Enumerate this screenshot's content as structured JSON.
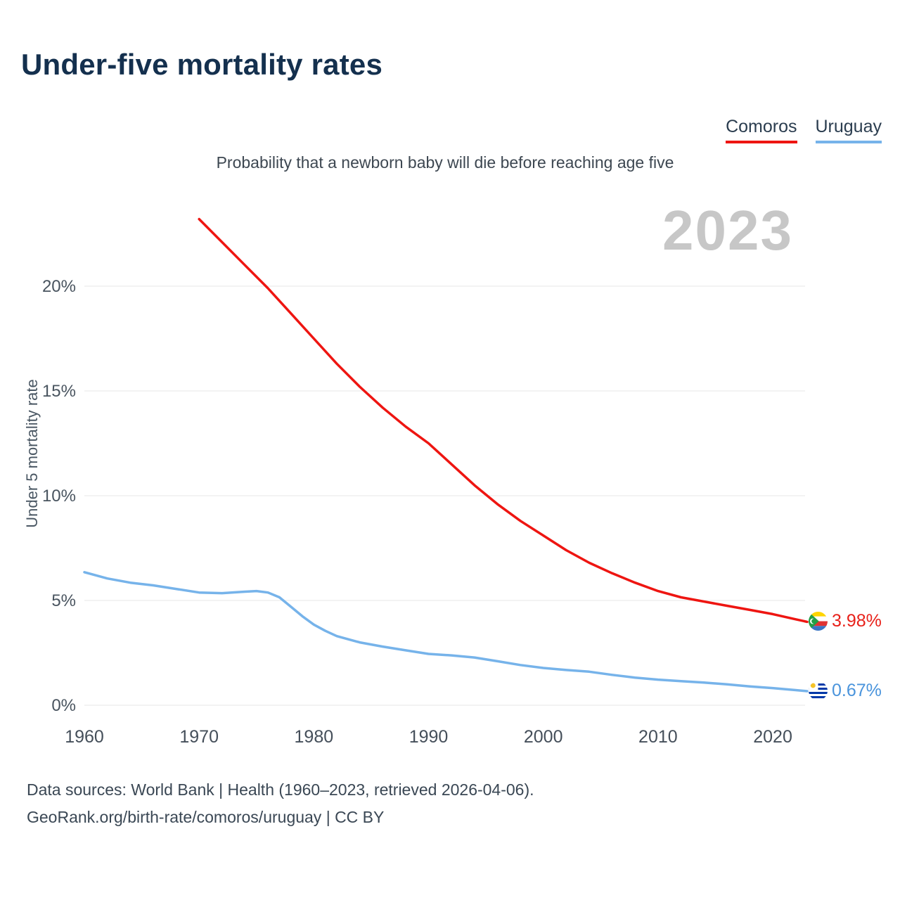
{
  "page": {
    "title": "Under-five mortality rates",
    "subtitle": "Probability that a newborn baby will die before reaching age five",
    "watermark": "2023",
    "footer_line1": "Data sources: World Bank | Health (1960–2023, retrieved 2026-04-06).",
    "footer_line2": "GeoRank.org/birth-rate/comoros/uruguay | CC BY"
  },
  "chart_data": {
    "type": "line",
    "title": "Under-five mortality rates",
    "subtitle": "Probability that a newborn baby will die before reaching age five",
    "xlabel": "",
    "ylabel": "Under 5 mortality rate",
    "xlim": [
      1960,
      2023
    ],
    "ylim": [
      0,
      23.6
    ],
    "grid": "horizontal",
    "legend_position": "top-right",
    "x_tick_values": [
      1960,
      1970,
      1980,
      1990,
      2000,
      2010,
      2020
    ],
    "x_tick_labels": [
      "1960",
      "1970",
      "1980",
      "1990",
      "2000",
      "2010",
      "2020"
    ],
    "y_ticks": [
      {
        "value": 0,
        "label": "0%"
      },
      {
        "value": 5,
        "label": "5%"
      },
      {
        "value": 10,
        "label": "10%"
      },
      {
        "value": 15,
        "label": "15%"
      },
      {
        "value": 20,
        "label": "20%"
      }
    ],
    "series": [
      {
        "name": "Comoros",
        "color": "#ee1511",
        "label_color": "#e8211a",
        "end_label": "3.98%",
        "flag": "comoros",
        "x": [
          1970,
          1972,
          1974,
          1976,
          1978,
          1980,
          1982,
          1984,
          1986,
          1988,
          1990,
          1992,
          1994,
          1996,
          1998,
          2000,
          2002,
          2004,
          2006,
          2008,
          2010,
          2012,
          2014,
          2016,
          2018,
          2020,
          2022,
          2023
        ],
        "values": [
          23.2,
          22.1,
          21.0,
          19.9,
          18.7,
          17.5,
          16.3,
          15.2,
          14.2,
          13.3,
          12.5,
          11.5,
          10.5,
          9.6,
          8.8,
          8.1,
          7.4,
          6.8,
          6.3,
          5.85,
          5.45,
          5.15,
          4.95,
          4.75,
          4.55,
          4.35,
          4.1,
          3.98
        ]
      },
      {
        "name": "Uruguay",
        "color": "#76b3ea",
        "label_color": "#4a94dc",
        "end_label": "0.67%",
        "flag": "uruguay",
        "x": [
          1960,
          1962,
          1964,
          1966,
          1968,
          1970,
          1972,
          1974,
          1975,
          1976,
          1977,
          1978,
          1979,
          1980,
          1981,
          1982,
          1984,
          1986,
          1988,
          1990,
          1992,
          1994,
          1996,
          1998,
          2000,
          2002,
          2004,
          2006,
          2008,
          2010,
          2012,
          2014,
          2016,
          2018,
          2020,
          2022,
          2023
        ],
        "values": [
          6.35,
          6.05,
          5.85,
          5.72,
          5.55,
          5.38,
          5.35,
          5.42,
          5.45,
          5.38,
          5.15,
          4.7,
          4.25,
          3.85,
          3.55,
          3.3,
          3.0,
          2.8,
          2.62,
          2.45,
          2.38,
          2.28,
          2.1,
          1.92,
          1.78,
          1.68,
          1.6,
          1.45,
          1.32,
          1.22,
          1.15,
          1.08,
          1.0,
          0.9,
          0.82,
          0.72,
          0.67
        ]
      }
    ]
  }
}
